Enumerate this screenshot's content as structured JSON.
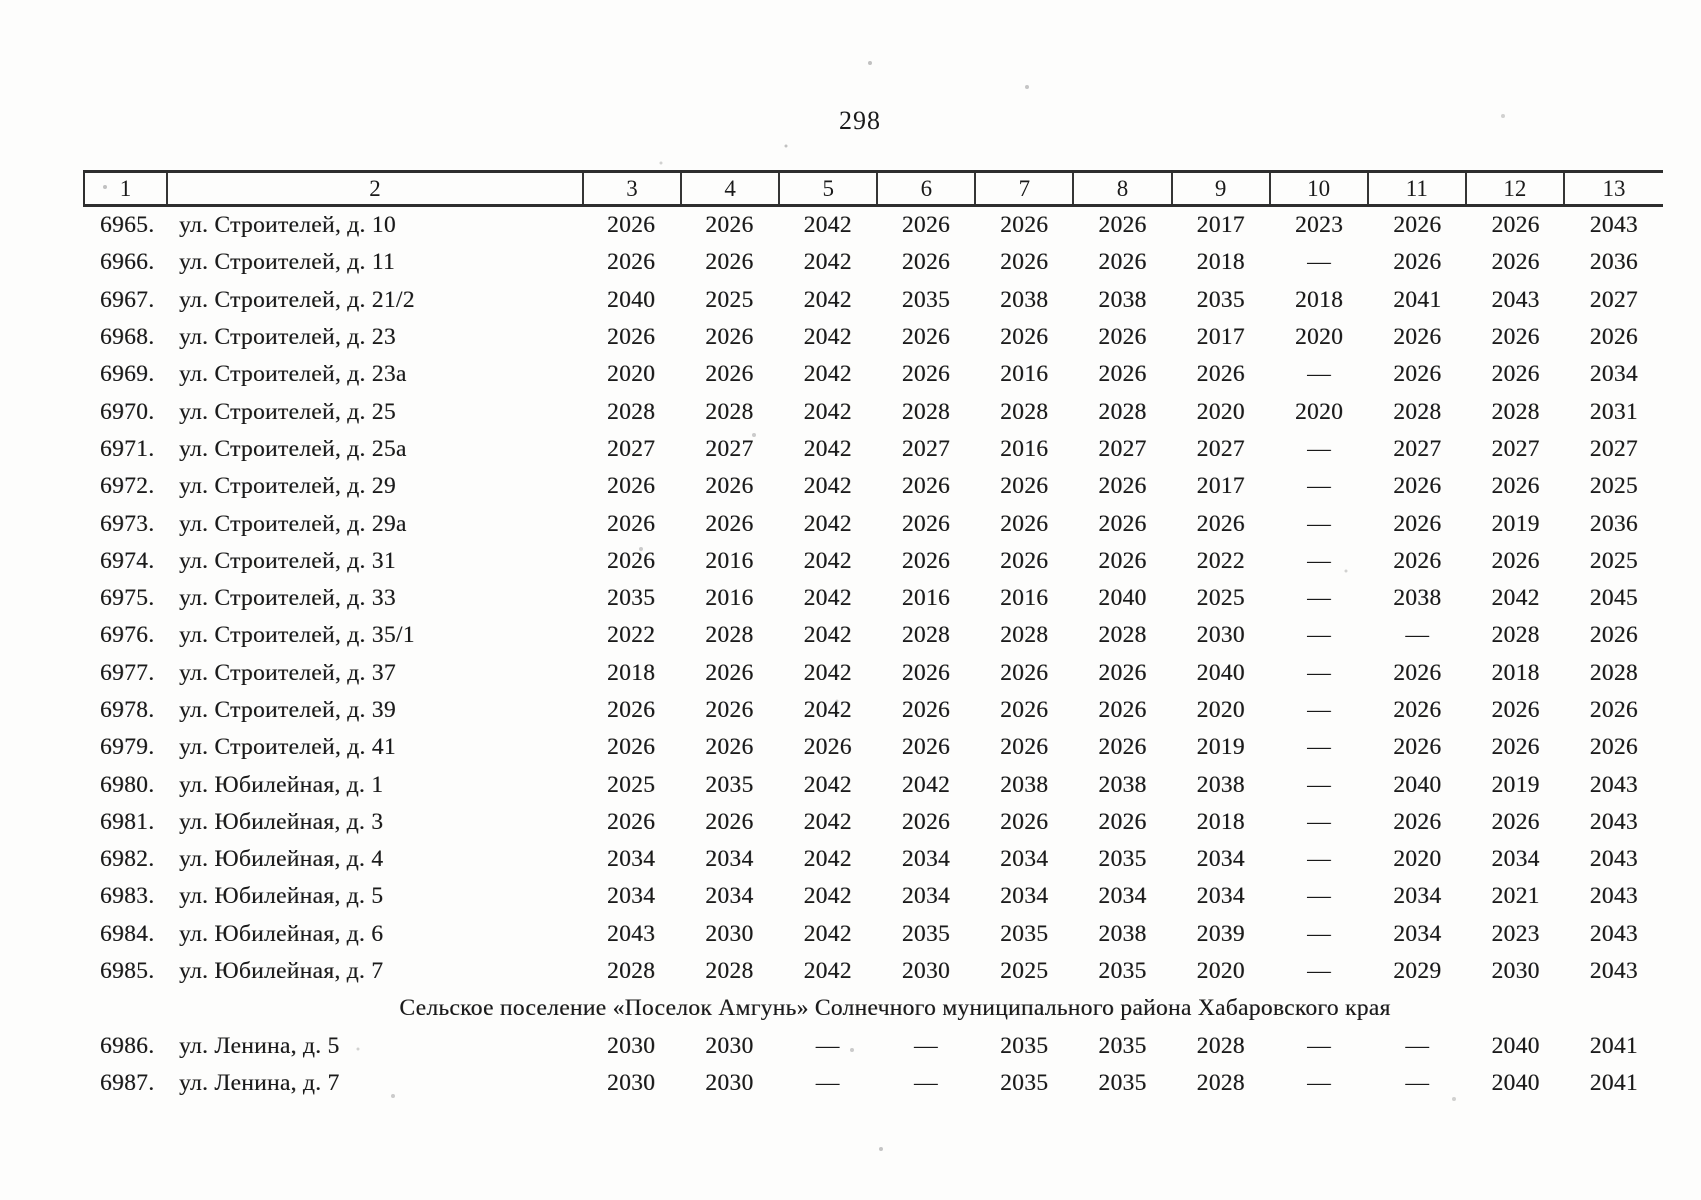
{
  "page_number": "298",
  "table": {
    "header_columns": [
      "1",
      "2",
      "3",
      "4",
      "5",
      "6",
      "7",
      "8",
      "9",
      "10",
      "11",
      "12",
      "13"
    ],
    "rows": [
      {
        "num": "6965.",
        "address": "ул. Строителей, д. 10",
        "values": [
          "2026",
          "2026",
          "2042",
          "2026",
          "2026",
          "2026",
          "2017",
          "2023",
          "2026",
          "2026",
          "2043"
        ]
      },
      {
        "num": "6966.",
        "address": "ул. Строителей, д. 11",
        "values": [
          "2026",
          "2026",
          "2042",
          "2026",
          "2026",
          "2026",
          "2018",
          "—",
          "2026",
          "2026",
          "2036"
        ]
      },
      {
        "num": "6967.",
        "address": "ул. Строителей, д. 21/2",
        "values": [
          "2040",
          "2025",
          "2042",
          "2035",
          "2038",
          "2038",
          "2035",
          "2018",
          "2041",
          "2043",
          "2027"
        ]
      },
      {
        "num": "6968.",
        "address": "ул. Строителей, д. 23",
        "values": [
          "2026",
          "2026",
          "2042",
          "2026",
          "2026",
          "2026",
          "2017",
          "2020",
          "2026",
          "2026",
          "2026"
        ]
      },
      {
        "num": "6969.",
        "address": "ул. Строителей, д. 23а",
        "values": [
          "2020",
          "2026",
          "2042",
          "2026",
          "2016",
          "2026",
          "2026",
          "—",
          "2026",
          "2026",
          "2034"
        ]
      },
      {
        "num": "6970.",
        "address": "ул. Строителей, д. 25",
        "values": [
          "2028",
          "2028",
          "2042",
          "2028",
          "2028",
          "2028",
          "2020",
          "2020",
          "2028",
          "2028",
          "2031"
        ]
      },
      {
        "num": "6971.",
        "address": "ул. Строителей, д. 25а",
        "values": [
          "2027",
          "2027",
          "2042",
          "2027",
          "2016",
          "2027",
          "2027",
          "—",
          "2027",
          "2027",
          "2027"
        ]
      },
      {
        "num": "6972.",
        "address": "ул. Строителей, д. 29",
        "values": [
          "2026",
          "2026",
          "2042",
          "2026",
          "2026",
          "2026",
          "2017",
          "—",
          "2026",
          "2026",
          "2025"
        ]
      },
      {
        "num": "6973.",
        "address": "ул. Строителей, д. 29а",
        "values": [
          "2026",
          "2026",
          "2042",
          "2026",
          "2026",
          "2026",
          "2026",
          "—",
          "2026",
          "2019",
          "2036"
        ]
      },
      {
        "num": "6974.",
        "address": "ул. Строителей, д. 31",
        "values": [
          "2026",
          "2016",
          "2042",
          "2026",
          "2026",
          "2026",
          "2022",
          "—",
          "2026",
          "2026",
          "2025"
        ]
      },
      {
        "num": "6975.",
        "address": "ул. Строителей, д. 33",
        "values": [
          "2035",
          "2016",
          "2042",
          "2016",
          "2016",
          "2040",
          "2025",
          "—",
          "2038",
          "2042",
          "2045"
        ]
      },
      {
        "num": "6976.",
        "address": "ул. Строителей, д. 35/1",
        "values": [
          "2022",
          "2028",
          "2042",
          "2028",
          "2028",
          "2028",
          "2030",
          "—",
          "—",
          "2028",
          "2026"
        ]
      },
      {
        "num": "6977.",
        "address": "ул. Строителей, д. 37",
        "values": [
          "2018",
          "2026",
          "2042",
          "2026",
          "2026",
          "2026",
          "2040",
          "—",
          "2026",
          "2018",
          "2028"
        ]
      },
      {
        "num": "6978.",
        "address": "ул. Строителей, д. 39",
        "values": [
          "2026",
          "2026",
          "2042",
          "2026",
          "2026",
          "2026",
          "2020",
          "—",
          "2026",
          "2026",
          "2026"
        ]
      },
      {
        "num": "6979.",
        "address": "ул. Строителей, д. 41",
        "values": [
          "2026",
          "2026",
          "2026",
          "2026",
          "2026",
          "2026",
          "2019",
          "—",
          "2026",
          "2026",
          "2026"
        ]
      },
      {
        "num": "6980.",
        "address": "ул. Юбилейная, д. 1",
        "values": [
          "2025",
          "2035",
          "2042",
          "2042",
          "2038",
          "2038",
          "2038",
          "—",
          "2040",
          "2019",
          "2043"
        ]
      },
      {
        "num": "6981.",
        "address": "ул. Юбилейная, д. 3",
        "values": [
          "2026",
          "2026",
          "2042",
          "2026",
          "2026",
          "2026",
          "2018",
          "—",
          "2026",
          "2026",
          "2043"
        ]
      },
      {
        "num": "6982.",
        "address": "ул. Юбилейная, д. 4",
        "values": [
          "2034",
          "2034",
          "2042",
          "2034",
          "2034",
          "2035",
          "2034",
          "—",
          "2020",
          "2034",
          "2043"
        ]
      },
      {
        "num": "6983.",
        "address": "ул. Юбилейная, д. 5",
        "values": [
          "2034",
          "2034",
          "2042",
          "2034",
          "2034",
          "2034",
          "2034",
          "—",
          "2034",
          "2021",
          "2043"
        ]
      },
      {
        "num": "6984.",
        "address": "ул. Юбилейная, д. 6",
        "values": [
          "2043",
          "2030",
          "2042",
          "2035",
          "2035",
          "2038",
          "2039",
          "—",
          "2034",
          "2023",
          "2043"
        ]
      },
      {
        "num": "6985.",
        "address": "ул. Юбилейная, д. 7",
        "values": [
          "2028",
          "2028",
          "2042",
          "2030",
          "2025",
          "2035",
          "2020",
          "—",
          "2029",
          "2030",
          "2043"
        ]
      },
      {
        "section": "Сельское поселение «Поселок Амгунь» Солнечного муниципального района Хабаровского края"
      },
      {
        "num": "6986.",
        "address": "ул. Ленина, д. 5",
        "values": [
          "2030",
          "2030",
          "—",
          "—",
          "2035",
          "2035",
          "2028",
          "—",
          "—",
          "2040",
          "2041"
        ]
      },
      {
        "num": "6987.",
        "address": "ул. Ленина, д. 7",
        "values": [
          "2030",
          "2030",
          "—",
          "—",
          "2035",
          "2035",
          "2028",
          "—",
          "—",
          "2040",
          "2041"
        ]
      }
    ]
  }
}
